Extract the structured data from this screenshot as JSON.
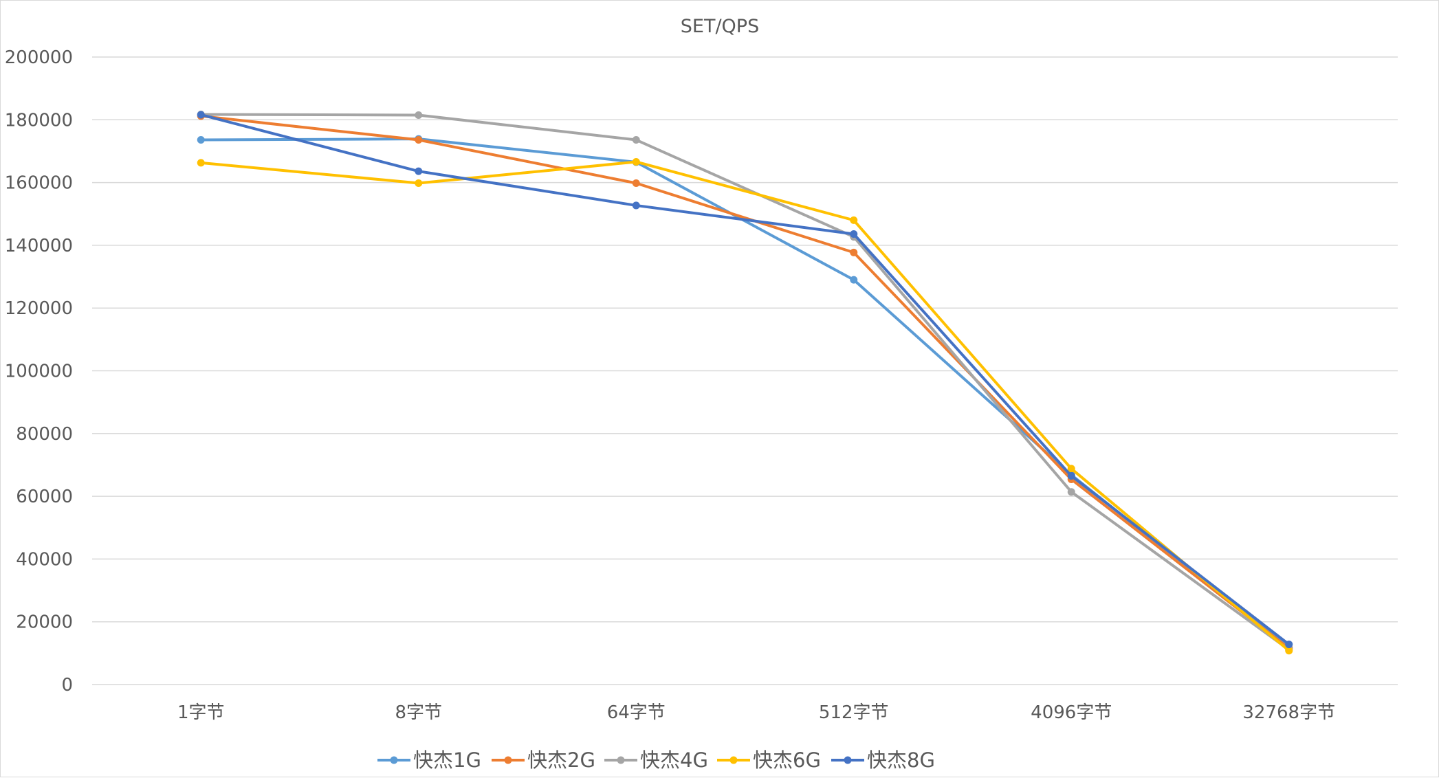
{
  "chart_data": {
    "type": "line",
    "title": "SET/QPS",
    "xlabel": "",
    "ylabel": "",
    "categories": [
      "1字节",
      "8字节",
      "64字节",
      "512字节",
      "4096字节",
      "32768字节"
    ],
    "ylim": [
      0,
      200000
    ],
    "yticks": [
      0,
      20000,
      40000,
      60000,
      80000,
      100000,
      120000,
      140000,
      160000,
      180000,
      200000
    ],
    "grid": true,
    "legend_position": "bottom",
    "series": [
      {
        "name": "快杰1G",
        "color": "#5b9bd5",
        "values": [
          173600,
          173900,
          166500,
          129000,
          66800,
          11700
        ]
      },
      {
        "name": "快杰2G",
        "color": "#ed7d31",
        "values": [
          181200,
          173600,
          159800,
          137700,
          65400,
          11500
        ]
      },
      {
        "name": "快杰4G",
        "color": "#a5a5a5",
        "values": [
          181700,
          181500,
          173600,
          142700,
          61400,
          11100
        ]
      },
      {
        "name": "快杰6G",
        "color": "#ffc000",
        "values": [
          166300,
          159800,
          166600,
          148000,
          68800,
          10800
        ]
      },
      {
        "name": "快杰8G",
        "color": "#4472c4",
        "values": [
          181600,
          163600,
          152700,
          143600,
          66500,
          12800
        ]
      }
    ]
  }
}
